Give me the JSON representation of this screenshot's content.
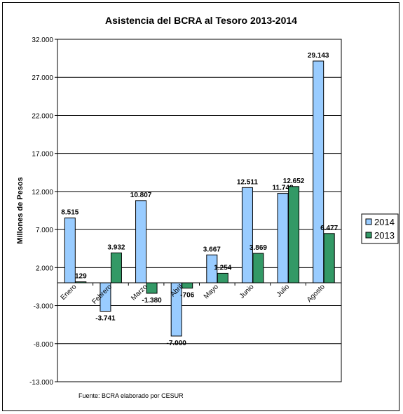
{
  "chart_data": {
    "type": "bar",
    "title": "Asistencia del BCRA al Tesoro 2013-2014",
    "ylabel": "Millones de Pesos",
    "xlabel": "",
    "ylim": [
      -13000,
      32000
    ],
    "yticks": [
      32000,
      27000,
      22000,
      17000,
      12000,
      7000,
      2000,
      -3000,
      -8000,
      -13000
    ],
    "ytick_labels": [
      "32.000",
      "27.000",
      "22.000",
      "17.000",
      "12.000",
      "7.000",
      "2.000",
      "-3.000",
      "-8.000",
      "-13.000"
    ],
    "categories": [
      "Enero",
      "Febrero",
      "Marzo",
      "Abril",
      "Mayo",
      "Junio",
      "Julio",
      "Agosto"
    ],
    "series": [
      {
        "name": "2014",
        "color": "#99ccff",
        "values": [
          8515,
          -3741,
          10807,
          -7000,
          3667,
          12511,
          11748,
          29143
        ],
        "labels": [
          "8.515",
          "-3.741",
          "10.807",
          "-7.000",
          "3.667",
          "12.511",
          "11.748",
          "29.143"
        ]
      },
      {
        "name": "2013",
        "color": "#339966",
        "values": [
          129,
          3932,
          -1380,
          -706,
          1254,
          3869,
          12652,
          6477
        ],
        "labels": [
          "129",
          "3.932",
          "-1.380",
          "-706",
          "1.254",
          "3.869",
          "12.652",
          "6.477"
        ]
      }
    ],
    "grid": true,
    "legend_position": "right",
    "source": "Fuente: BCRA elaborado por CESUR"
  }
}
